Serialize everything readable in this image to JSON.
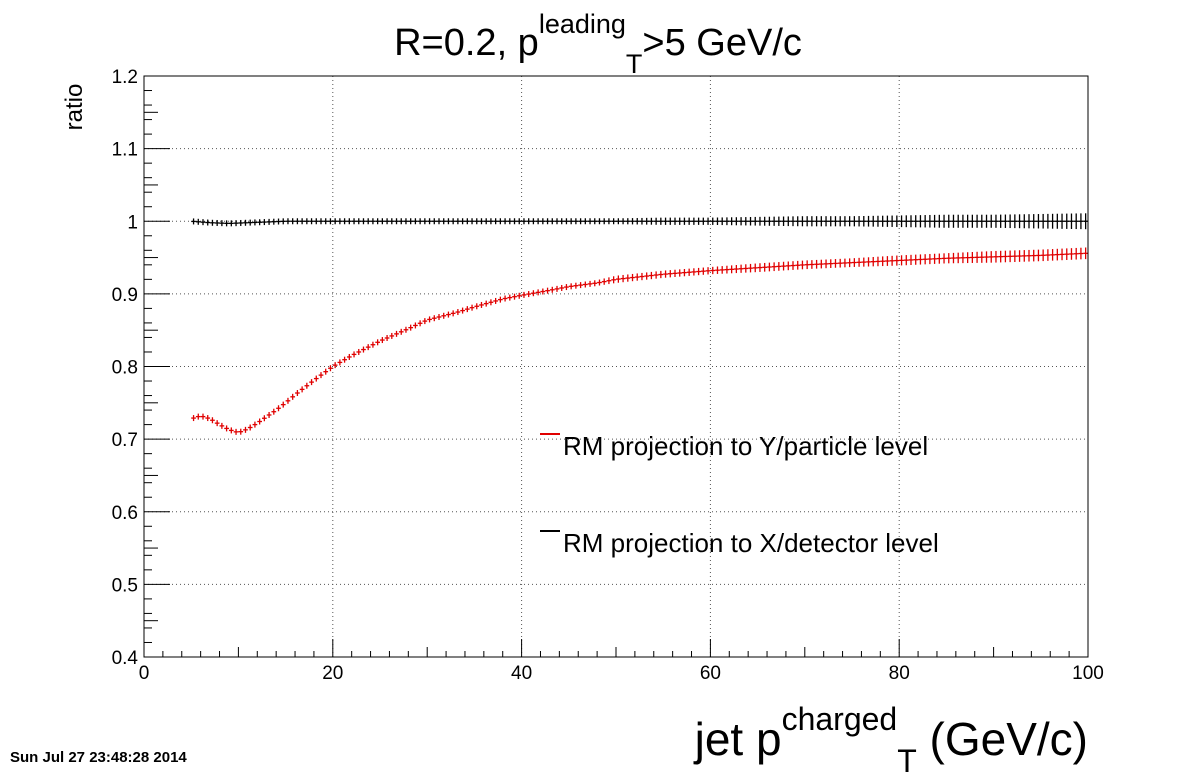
{
  "chart_data": {
    "type": "scatter",
    "title": {
      "base": "R=0.2, p",
      "sup": "leading",
      "sub": "T",
      "tail": ">5 GeV/c"
    },
    "xlabel": {
      "base": "jet p",
      "sup": "charged",
      "sub": "T",
      "tail": " (GeV/c)"
    },
    "ylabel": "ratio",
    "xlim": [
      0,
      100
    ],
    "ylim": [
      0.4,
      1.2
    ],
    "x_ticks": [
      {
        "value": 0,
        "label": "0"
      },
      {
        "value": 20,
        "label": "20"
      },
      {
        "value": 40,
        "label": "40"
      },
      {
        "value": 60,
        "label": "60"
      },
      {
        "value": 80,
        "label": "80"
      },
      {
        "value": 100,
        "label": "100"
      }
    ],
    "y_ticks": [
      {
        "value": 0.4,
        "label": "0.4"
      },
      {
        "value": 0.5,
        "label": "0.5"
      },
      {
        "value": 0.6,
        "label": "0.6"
      },
      {
        "value": 0.7,
        "label": "0.7"
      },
      {
        "value": 0.8,
        "label": "0.8"
      },
      {
        "value": 0.9,
        "label": "0.9"
      },
      {
        "value": 1.0,
        "label": "1"
      },
      {
        "value": 1.1,
        "label": "1.1"
      },
      {
        "value": 1.2,
        "label": "1.2"
      }
    ],
    "grid": true,
    "legend_position": "center-right",
    "series": [
      {
        "name": "RM projection to Y/particle level",
        "color": "#e00000",
        "x": [
          5,
          6,
          7,
          8,
          9,
          10,
          11,
          12,
          13,
          14,
          15,
          16,
          18,
          20,
          22,
          25,
          28,
          30,
          33,
          35,
          38,
          40,
          43,
          45,
          48,
          50,
          55,
          60,
          65,
          70,
          75,
          80,
          85,
          90,
          95,
          100
        ],
        "y": [
          0.728,
          0.732,
          0.728,
          0.72,
          0.713,
          0.709,
          0.714,
          0.722,
          0.731,
          0.74,
          0.75,
          0.761,
          0.781,
          0.8,
          0.815,
          0.835,
          0.852,
          0.864,
          0.874,
          0.882,
          0.893,
          0.898,
          0.905,
          0.91,
          0.915,
          0.92,
          0.927,
          0.932,
          0.936,
          0.94,
          0.943,
          0.946,
          0.949,
          0.951,
          0.953,
          0.956
        ],
        "err": [
          0.001,
          0.001,
          0.001,
          0.001,
          0.001,
          0.001,
          0.001,
          0.001,
          0.001,
          0.001,
          0.001,
          0.001,
          0.002,
          0.002,
          0.002,
          0.002,
          0.003,
          0.003,
          0.003,
          0.003,
          0.003,
          0.004,
          0.004,
          0.004,
          0.004,
          0.005,
          0.005,
          0.005,
          0.006,
          0.006,
          0.006,
          0.007,
          0.007,
          0.008,
          0.008,
          0.008
        ]
      },
      {
        "name": "RM projection to X/detector level",
        "color": "#000000",
        "x": [
          5,
          7,
          9,
          11,
          13,
          15,
          18,
          20,
          25,
          30,
          35,
          40,
          45,
          50,
          55,
          60,
          65,
          70,
          75,
          80,
          85,
          90,
          95,
          100
        ],
        "y": [
          1.0,
          0.998,
          0.997,
          0.998,
          0.999,
          1.0,
          1.0,
          1.0,
          1.0,
          1.0,
          1.0,
          1.0,
          1.0,
          1.0,
          1.0,
          1.0,
          1.0,
          1.0,
          1.0,
          1.0,
          1.0,
          1.0,
          1.0,
          1.0
        ],
        "err": [
          0.001,
          0.001,
          0.001,
          0.001,
          0.001,
          0.001,
          0.001,
          0.002,
          0.002,
          0.002,
          0.003,
          0.003,
          0.004,
          0.004,
          0.005,
          0.005,
          0.006,
          0.007,
          0.007,
          0.008,
          0.009,
          0.009,
          0.01,
          0.011
        ]
      }
    ]
  },
  "footer": {
    "timestamp": "Sun Jul 27 23:48:28 2014"
  }
}
